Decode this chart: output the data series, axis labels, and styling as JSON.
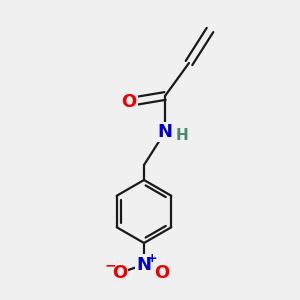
{
  "bg_color": "#f0f0f0",
  "bond_color": "#1a1a1a",
  "atom_colors": {
    "O": "#ee0000",
    "N_amide": "#0000cc",
    "H": "#4a8a6a",
    "N_nitro": "#0000cc",
    "O_minus": "#ee0000",
    "O_nitro": "#ee0000"
  },
  "font_size_atoms": 13,
  "font_size_h": 11,
  "font_size_charge": 9,
  "line_width": 1.6
}
